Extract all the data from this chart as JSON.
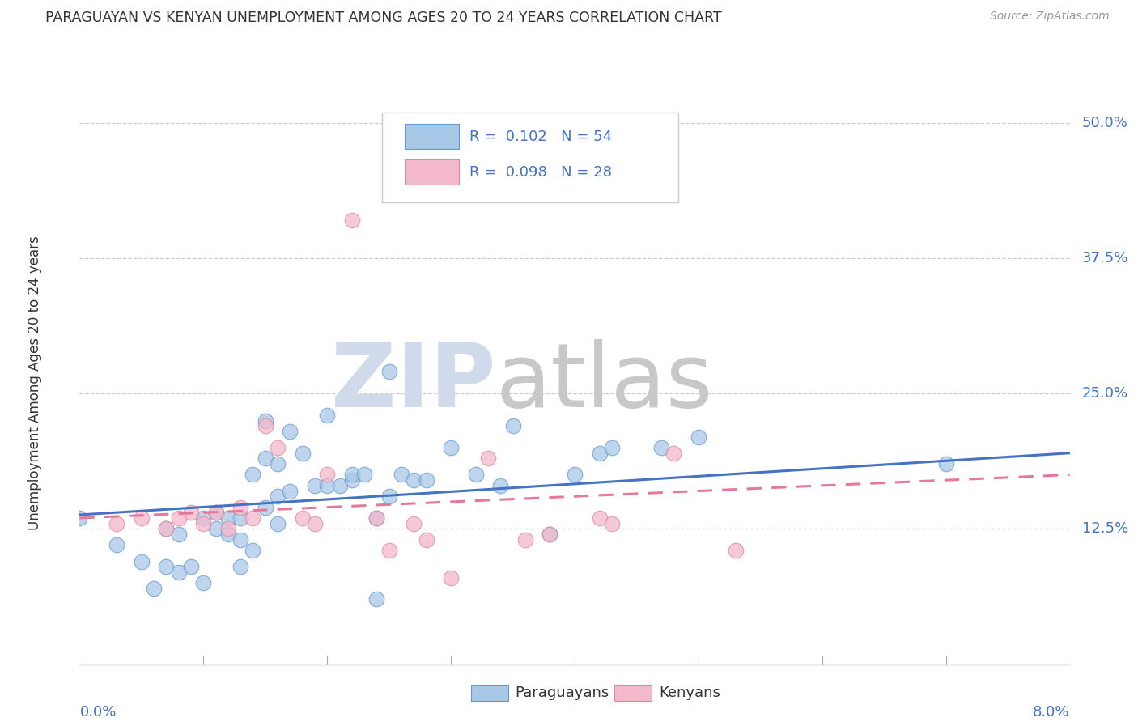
{
  "title": "PARAGUAYAN VS KENYAN UNEMPLOYMENT AMONG AGES 20 TO 24 YEARS CORRELATION CHART",
  "source": "Source: ZipAtlas.com",
  "ylabel": "Unemployment Among Ages 20 to 24 years",
  "xmin": 0.0,
  "xmax": 0.08,
  "ymin": 0.0,
  "ymax": 0.52,
  "yticks": [
    0.125,
    0.25,
    0.375,
    0.5
  ],
  "ytick_labels": [
    "12.5%",
    "25.0%",
    "37.5%",
    "50.0%"
  ],
  "color_paraguayan_fill": "#a8c8e8",
  "color_paraguayan_edge": "#6699cc",
  "color_kenyan_fill": "#f4b8cc",
  "color_kenyan_edge": "#dd8899",
  "color_trend_paraguayan": "#4472c4",
  "color_trend_kenyan": "#e8789a",
  "color_axis_labels": "#4472c4",
  "paraguayan_x": [
    0.0,
    0.003,
    0.005,
    0.006,
    0.007,
    0.007,
    0.008,
    0.008,
    0.009,
    0.01,
    0.01,
    0.011,
    0.011,
    0.012,
    0.012,
    0.013,
    0.013,
    0.013,
    0.014,
    0.014,
    0.015,
    0.015,
    0.015,
    0.016,
    0.016,
    0.016,
    0.017,
    0.017,
    0.018,
    0.019,
    0.02,
    0.02,
    0.021,
    0.022,
    0.022,
    0.023,
    0.024,
    0.024,
    0.025,
    0.025,
    0.026,
    0.027,
    0.028,
    0.03,
    0.032,
    0.034,
    0.035,
    0.038,
    0.04,
    0.042,
    0.043,
    0.047,
    0.05,
    0.07
  ],
  "paraguayan_y": [
    0.135,
    0.11,
    0.095,
    0.07,
    0.125,
    0.09,
    0.085,
    0.12,
    0.09,
    0.075,
    0.135,
    0.125,
    0.14,
    0.12,
    0.135,
    0.115,
    0.09,
    0.135,
    0.175,
    0.105,
    0.145,
    0.225,
    0.19,
    0.13,
    0.185,
    0.155,
    0.215,
    0.16,
    0.195,
    0.165,
    0.23,
    0.165,
    0.165,
    0.17,
    0.175,
    0.175,
    0.135,
    0.06,
    0.27,
    0.155,
    0.175,
    0.17,
    0.17,
    0.2,
    0.175,
    0.165,
    0.22,
    0.12,
    0.175,
    0.195,
    0.2,
    0.2,
    0.21,
    0.185
  ],
  "kenyan_x": [
    0.003,
    0.005,
    0.007,
    0.008,
    0.009,
    0.01,
    0.011,
    0.012,
    0.013,
    0.014,
    0.015,
    0.016,
    0.018,
    0.019,
    0.02,
    0.022,
    0.024,
    0.025,
    0.027,
    0.028,
    0.03,
    0.033,
    0.036,
    0.038,
    0.042,
    0.043,
    0.048,
    0.053
  ],
  "kenyan_y": [
    0.13,
    0.135,
    0.125,
    0.135,
    0.14,
    0.13,
    0.14,
    0.125,
    0.145,
    0.135,
    0.22,
    0.2,
    0.135,
    0.13,
    0.175,
    0.41,
    0.135,
    0.105,
    0.13,
    0.115,
    0.08,
    0.19,
    0.115,
    0.12,
    0.135,
    0.13,
    0.195,
    0.105
  ],
  "trend_p_x0": 0.0,
  "trend_p_y0": 0.138,
  "trend_p_x1": 0.08,
  "trend_p_y1": 0.195,
  "trend_k_x0": 0.0,
  "trend_k_y0": 0.135,
  "trend_k_x1": 0.08,
  "trend_k_y1": 0.175
}
